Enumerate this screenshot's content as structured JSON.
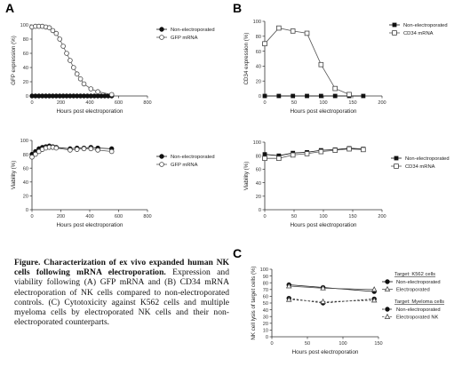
{
  "panels": {
    "A": {
      "letter": "A"
    },
    "B": {
      "letter": "B"
    },
    "C": {
      "letter": "C"
    }
  },
  "caption": {
    "lead": "Figure. Characterization of ex vivo expanded human NK cells following mRNA electroporation.",
    "body": "Expression and viability following (A) GFP mRNA and (B) CD34 mRNA electroporation of NK cells compared to non-electroporated controls. (C) Cytotoxicity against K562 cells and multiple myeloma cells by electroporated NK cells and their non-electroporated counterparts."
  },
  "chart_data": [
    {
      "id": "A-expression",
      "type": "line",
      "xlabel": "Hours post electroporation",
      "ylabel": "GFP expression (%)",
      "xlim": [
        0,
        800
      ],
      "ylim": [
        0,
        100
      ],
      "xticks": [
        0,
        200,
        400,
        600,
        800
      ],
      "yticks": [
        0,
        20,
        40,
        60,
        80,
        100
      ],
      "legend_position": "top-right",
      "series": [
        {
          "name": "Non-electroporated",
          "marker": "filled-circle",
          "x": [
            0,
            24,
            48,
            72,
            96,
            120,
            144,
            168,
            192,
            216,
            240,
            264,
            288,
            312,
            336,
            360,
            384,
            408,
            432,
            456,
            480,
            504,
            528,
            552
          ],
          "y": [
            0,
            0,
            0,
            0,
            0,
            0,
            0,
            0,
            0,
            0,
            0,
            0,
            0,
            0,
            0,
            0,
            0,
            0,
            0,
            0,
            0,
            0,
            0,
            0
          ]
        },
        {
          "name": "GFP mRNA",
          "marker": "open-circle",
          "x": [
            0,
            24,
            48,
            72,
            96,
            120,
            144,
            168,
            192,
            216,
            240,
            264,
            288,
            312,
            336,
            360,
            408,
            456,
            552
          ],
          "y": [
            97,
            98,
            98,
            98,
            97,
            96,
            92,
            88,
            80,
            70,
            60,
            50,
            40,
            31,
            24,
            17,
            10,
            6,
            2
          ]
        }
      ]
    },
    {
      "id": "A-viability",
      "type": "line",
      "xlabel": "Hours post electroporation",
      "ylabel": "Viability (%)",
      "xlim": [
        0,
        800
      ],
      "ylim": [
        0,
        100
      ],
      "xticks": [
        0,
        200,
        400,
        600,
        800
      ],
      "yticks": [
        0,
        20,
        40,
        60,
        80,
        100
      ],
      "legend_position": "right",
      "series": [
        {
          "name": "Non-electroporated",
          "marker": "filled-circle",
          "x": [
            0,
            24,
            48,
            72,
            96,
            120,
            144,
            168,
            264,
            312,
            360,
            408,
            456,
            552
          ],
          "y": [
            80,
            84,
            88,
            90,
            91,
            92,
            91,
            90,
            88,
            89,
            89,
            90,
            89,
            88
          ]
        },
        {
          "name": "GFP mRNA",
          "marker": "open-circle",
          "x": [
            0,
            24,
            48,
            72,
            96,
            120,
            144,
            168,
            264,
            312,
            360,
            408,
            456,
            552
          ],
          "y": [
            76,
            80,
            84,
            87,
            89,
            90,
            90,
            89,
            86,
            87,
            88,
            88,
            86,
            84
          ]
        }
      ]
    },
    {
      "id": "B-expression",
      "type": "line",
      "xlabel": "Hours post electroporation",
      "ylabel": "CD34 expression (%)",
      "xlim": [
        0,
        200
      ],
      "ylim": [
        0,
        100
      ],
      "xticks": [
        0,
        50,
        100,
        150,
        200
      ],
      "yticks": [
        0,
        20,
        40,
        60,
        80,
        100
      ],
      "legend_position": "top-right",
      "series": [
        {
          "name": "Non-electroporated",
          "marker": "filled-square",
          "x": [
            0,
            24,
            48,
            72,
            96,
            120,
            144,
            168
          ],
          "y": [
            0,
            0,
            0,
            0,
            0,
            0,
            0,
            0
          ]
        },
        {
          "name": "CD34 mRNA",
          "marker": "open-square",
          "x": [
            0,
            24,
            48,
            72,
            96,
            120,
            144
          ],
          "y": [
            70,
            91,
            87,
            84,
            42,
            10,
            2
          ]
        }
      ]
    },
    {
      "id": "B-viability",
      "type": "line",
      "xlabel": "Hours post electroporation",
      "ylabel": "Viability (%)",
      "xlim": [
        0,
        200
      ],
      "ylim": [
        0,
        100
      ],
      "xticks": [
        0,
        50,
        100,
        150,
        200
      ],
      "yticks": [
        0,
        20,
        40,
        60,
        80,
        100
      ],
      "legend_position": "right",
      "series": [
        {
          "name": "Non-electroporated",
          "marker": "filled-square",
          "x": [
            0,
            24,
            48,
            72,
            96,
            120,
            144,
            168
          ],
          "y": [
            82,
            80,
            84,
            85,
            88,
            89,
            91,
            90
          ]
        },
        {
          "name": "CD34 mRNA",
          "marker": "open-square",
          "x": [
            0,
            24,
            48,
            72,
            96,
            120,
            144,
            168
          ],
          "y": [
            76,
            76,
            81,
            83,
            86,
            88,
            90,
            89
          ]
        }
      ]
    },
    {
      "id": "C-cytotoxicity",
      "type": "line",
      "xlabel": "Hours post electroporation",
      "ylabel": "NK cell lysis of target cells (%)",
      "xlim": [
        0,
        150
      ],
      "ylim": [
        0,
        100
      ],
      "xticks": [
        0,
        50,
        100,
        150
      ],
      "yticks": [
        0,
        10,
        20,
        30,
        40,
        50,
        60,
        70,
        80,
        90,
        100
      ],
      "legend_position": "right",
      "legend_groups": [
        {
          "title": "Target: K562 cells",
          "items": [
            0,
            1
          ]
        },
        {
          "title": "Target: Myeloma cells",
          "items": [
            2,
            3
          ]
        }
      ],
      "series": [
        {
          "name": "Non-electroporated",
          "marker": "filled-circle",
          "dash": false,
          "x": [
            24,
            72,
            144
          ],
          "y": [
            77,
            73,
            67
          ]
        },
        {
          "name": "Electroporated",
          "marker": "open-triangle",
          "dash": false,
          "x": [
            24,
            72,
            144
          ],
          "y": [
            75,
            72,
            70
          ]
        },
        {
          "name": "Non-electroporated",
          "marker": "filled-circle",
          "dash": true,
          "x": [
            24,
            72,
            144
          ],
          "y": [
            57,
            50,
            56
          ]
        },
        {
          "name": "Electroporated NK",
          "marker": "open-triangle",
          "dash": true,
          "x": [
            24,
            72,
            144
          ],
          "y": [
            55,
            52,
            54
          ]
        }
      ]
    }
  ]
}
